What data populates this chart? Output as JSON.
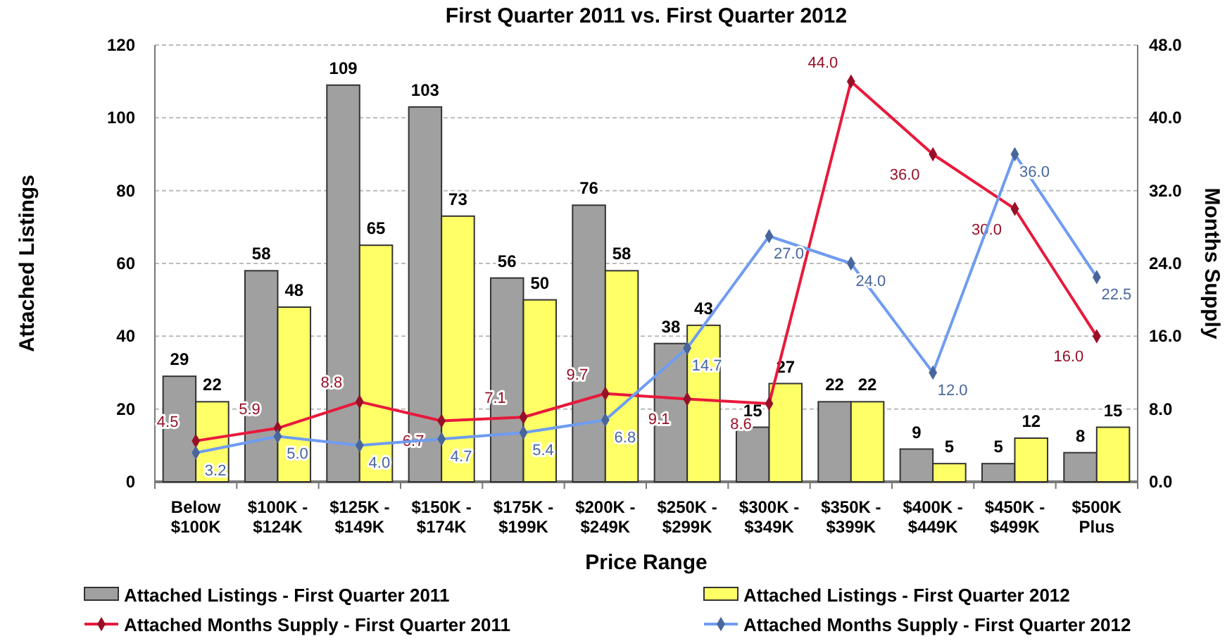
{
  "chart_data": {
    "type": "bar",
    "title": "First Quarter 2011 vs. First Quarter 2012",
    "xlabel": "Price Range",
    "ylabel": "Attached Listings",
    "y2label": "Months Supply",
    "categories": [
      "Below\n$100K",
      "$100K -\n$124K",
      "$125K -\n$149K",
      "$150K -\n$174K",
      "$175K -\n$199K",
      "$200K -\n$249K",
      "$250K -\n$299K",
      "$300K -\n$349K",
      "$350K -\n$399K",
      "$400K -\n$449K",
      "$450K -\n$499K",
      "$500K\nPlus"
    ],
    "series": [
      {
        "name": "Attached Listings - First Quarter 2011",
        "color": "#a0a0a0",
        "values": [
          29,
          58,
          109,
          103,
          56,
          76,
          38,
          15,
          22,
          9,
          5,
          8
        ],
        "value_labels": [
          "29",
          "58",
          "109",
          "103",
          "56",
          "76",
          "38",
          "15",
          "22",
          "9",
          "5",
          "8"
        ]
      },
      {
        "name": "Attached Listings - First Quarter 2012",
        "color": "#ffff66",
        "values": [
          22,
          48,
          65,
          73,
          50,
          58,
          43,
          27,
          22,
          5,
          12,
          15
        ],
        "value_labels": [
          "22",
          "48",
          "65",
          "73",
          "50",
          "58",
          "43",
          "27",
          "22",
          "5",
          "12",
          "15"
        ]
      },
      {
        "name": "Attached Months Supply - First Quarter 2011",
        "type": "line",
        "axis": "y2",
        "color": "#e8193c",
        "values": [
          4.5,
          5.9,
          8.8,
          6.7,
          7.1,
          9.7,
          9.1,
          8.6,
          44.0,
          36.0,
          30.0,
          16.0
        ],
        "value_labels": [
          "4.5",
          "5.9",
          "8.8",
          "6.7",
          "7.1",
          "9.7",
          "9.1",
          "8.6",
          "44.0",
          "36.0",
          "30.0",
          "16.0"
        ]
      },
      {
        "name": "Attached Months Supply - First Quarter 2012",
        "type": "line",
        "axis": "y2",
        "color": "#6f9cf0",
        "values": [
          3.2,
          5.0,
          4.0,
          4.7,
          5.4,
          6.8,
          14.7,
          27.0,
          24.0,
          12.0,
          36.0,
          22.5
        ],
        "value_labels": [
          "3.2",
          "5.0",
          "4.0",
          "4.7",
          "5.4",
          "6.8",
          "14.7",
          "27.0",
          "24.0",
          "12.0",
          "36.0",
          "22.5"
        ]
      }
    ],
    "ylim": [
      0,
      120
    ],
    "yticks": [
      0,
      20,
      40,
      60,
      80,
      100,
      120
    ],
    "y2lim": [
      0,
      48
    ],
    "y2ticks": [
      {
        "value": 0,
        "label": "0.0"
      },
      {
        "value": 8,
        "label": "8.0"
      },
      {
        "value": 16,
        "label": "16.0"
      },
      {
        "value": 24,
        "label": "24.0"
      },
      {
        "value": 32,
        "label": "32.0"
      },
      {
        "value": 40,
        "label": "40.0"
      },
      {
        "value": 48,
        "label": "48.0"
      }
    ],
    "grid": "y",
    "legend": "bottom",
    "marker": "diamond",
    "line_style": "solid"
  }
}
